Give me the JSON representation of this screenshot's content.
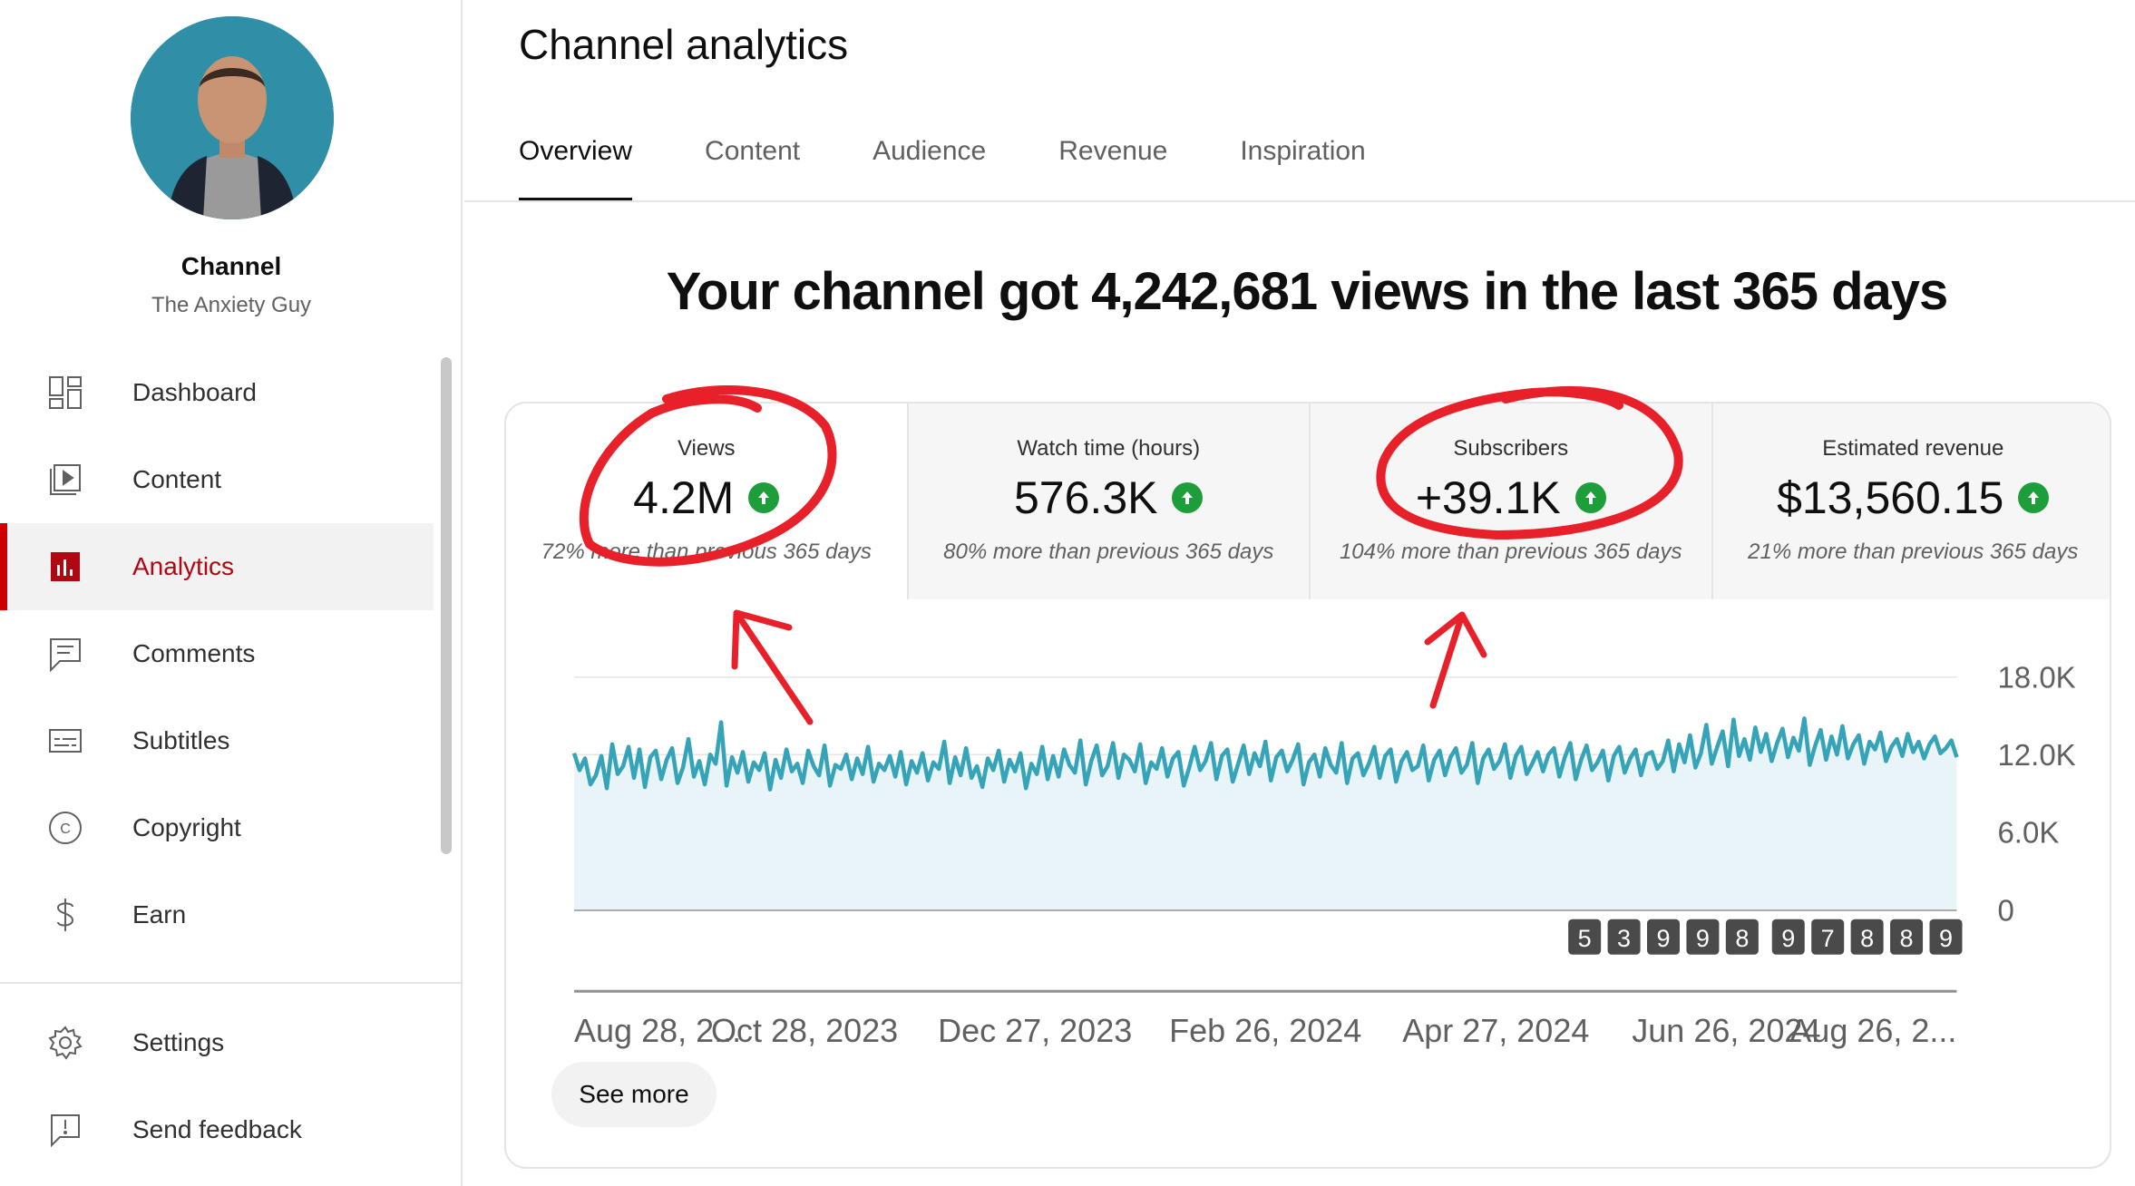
{
  "sidebar": {
    "channel_title": "Channel",
    "channel_name": "The Anxiety Guy",
    "items": [
      {
        "label": "Dashboard",
        "icon": "dashboard-icon"
      },
      {
        "label": "Content",
        "icon": "content-icon"
      },
      {
        "label": "Analytics",
        "icon": "analytics-icon",
        "active": true
      },
      {
        "label": "Comments",
        "icon": "comments-icon"
      },
      {
        "label": "Subtitles",
        "icon": "subtitles-icon"
      },
      {
        "label": "Copyright",
        "icon": "copyright-icon"
      },
      {
        "label": "Earn",
        "icon": "dollar-icon"
      }
    ],
    "bottom_items": [
      {
        "label": "Settings",
        "icon": "gear-icon"
      },
      {
        "label": "Send feedback",
        "icon": "feedback-icon"
      }
    ],
    "accent_color": "#cc0000"
  },
  "main": {
    "title": "Channel analytics",
    "tabs": [
      {
        "label": "Overview",
        "active": true
      },
      {
        "label": "Content"
      },
      {
        "label": "Audience"
      },
      {
        "label": "Revenue"
      },
      {
        "label": "Inspiration"
      }
    ],
    "headline": "Your channel got 4,242,681 views in the last 365 days",
    "metrics": [
      {
        "label": "Views",
        "value": "4.2M",
        "sub": "72% more than previous 365 days"
      },
      {
        "label": "Watch time (hours)",
        "value": "576.3K",
        "sub": "80% more than previous 365 days"
      },
      {
        "label": "Subscribers",
        "value": "+39.1K",
        "sub": "104% more than previous 365 days"
      },
      {
        "label": "Estimated revenue",
        "value": "$13,560.15",
        "sub": "21% more than previous 365 days"
      }
    ],
    "see_more": "See more",
    "trend_color": "#1e9e3b"
  },
  "chart_data": {
    "type": "area",
    "color": "#35a3b8",
    "y_ticks": [
      "18.0K",
      "12.0K",
      "6.0K",
      "0"
    ],
    "ylim": [
      0,
      18000
    ],
    "x_labels": [
      "Aug 28, 2...",
      "Oct 28, 2023",
      "Dec 27, 2023",
      "Feb 26, 2024",
      "Apr 27, 2024",
      "Jun 26, 2024",
      "Aug 26, 2..."
    ],
    "markers": [
      "5",
      "3",
      "9",
      "9",
      "8",
      "9",
      "7",
      "8",
      "8",
      "9"
    ],
    "grid": true,
    "series": [
      {
        "values": [
          12100,
          10800,
          11700,
          9700,
          10400,
          11900,
          9400,
          12800,
          10500,
          11100,
          12600,
          10200,
          12400,
          9500,
          11800,
          12300,
          10100,
          11600,
          12500,
          9800,
          11000,
          13200,
          10300,
          11500,
          9700,
          12000,
          11300,
          14500,
          9600,
          11800,
          10600,
          12200,
          9900,
          11400,
          10800,
          12100,
          9300,
          11600,
          10200,
          12400,
          10700,
          11300,
          9800,
          12300,
          11100,
          10400,
          12700,
          9600,
          11200,
          10900,
          12000,
          10100,
          11700,
          10500,
          12600,
          9900,
          11300,
          10800,
          11900,
          10300,
          12200,
          9700,
          11500,
          10600,
          12100,
          10000,
          11400,
          10900,
          13000,
          9800,
          11800,
          10400,
          12500,
          10200,
          11100,
          9500,
          11700,
          10800,
          12300,
          9900,
          11600,
          10700,
          12100,
          9400,
          11300,
          10500,
          12600,
          10100,
          11900,
          10300,
          12400,
          11200,
          10600,
          13100,
          9700,
          11500,
          12700,
          10400,
          11100,
          12900,
          10200,
          12000,
          11600,
          10700,
          12800,
          9800,
          11400,
          10900,
          12500,
          10300,
          11700,
          12200,
          9600,
          11000,
          12600,
          10800,
          11500,
          12900,
          10100,
          11900,
          12400,
          9900,
          11300,
          12700,
          10500,
          12100,
          11100,
          13000,
          10000,
          11800,
          12300,
          10700,
          11600,
          12800,
          9700,
          11400,
          12000,
          10300,
          12500,
          11200,
          10600,
          12900,
          9800,
          11700,
          12100,
          10400,
          11300,
          12600,
          10200,
          11900,
          12400,
          9900,
          11500,
          12200,
          10800,
          11100,
          12700,
          10000,
          11600,
          12300,
          10400,
          11800,
          12500,
          10600,
          11200,
          12900,
          9800,
          11700,
          12400,
          10900,
          11500,
          12800,
          10200,
          11900,
          12600,
          10500,
          11300,
          12200,
          10700,
          12000,
          12500,
          10300,
          11800,
          12900,
          10100,
          11600,
          12700,
          10800,
          11400,
          12300,
          10000,
          11900,
          12600,
          10600,
          11700,
          12400,
          10400,
          12000,
          12200,
          10900,
          11500,
          13100,
          10700,
          12800,
          11400,
          13500,
          11000,
          12100,
          14300,
          11300,
          12600,
          13800,
          11100,
          14700,
          11900,
          13200,
          11600,
          14100,
          12200,
          13600,
          11500,
          12900,
          14000,
          11800,
          13300,
          12300,
          14800,
          11200,
          12700,
          13900,
          11600,
          13400,
          12000,
          14200,
          11700,
          12800,
          13500,
          11300,
          13000,
          12400,
          13700,
          11500,
          12600,
          13200,
          11900,
          13600,
          12200,
          13000,
          11700,
          12800,
          13400,
          12100,
          12500,
          13100,
          11800
        ]
      }
    ]
  }
}
